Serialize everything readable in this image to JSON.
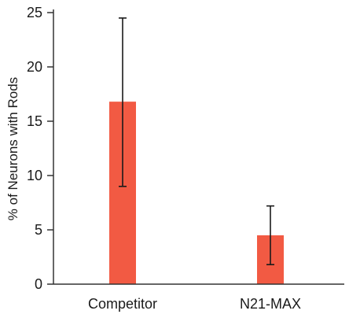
{
  "chart_data": {
    "type": "bar",
    "categories": [
      "Competitor",
      "N21-MAX"
    ],
    "values": [
      16.8,
      4.5
    ],
    "error_low": [
      9.0,
      1.8
    ],
    "error_high": [
      24.5,
      7.2
    ],
    "title": "",
    "xlabel": "",
    "ylabel": "% of Neurons with Rods",
    "ylim": [
      0,
      25
    ],
    "yticks": [
      0,
      5,
      10,
      15,
      20,
      25
    ],
    "grid": false,
    "bar_color": "#f25a43",
    "error_color": "#1a1a1a"
  }
}
